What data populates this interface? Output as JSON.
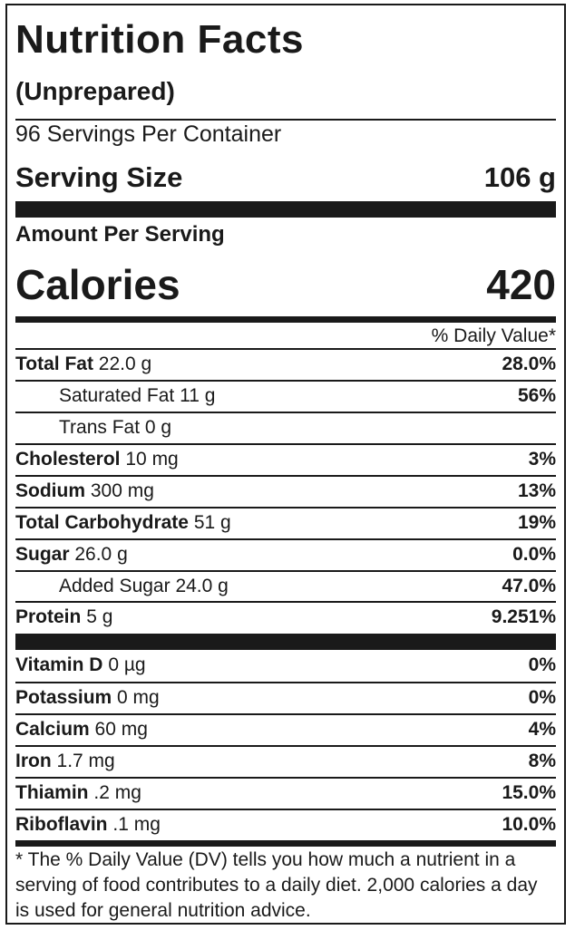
{
  "label": {
    "title": "Nutrition Facts",
    "subtitle": "(Unprepared)",
    "servings_per_container": "96 Servings Per Container",
    "serving_size_label": "Serving Size",
    "serving_size_value": "106 g",
    "amount_per_serving": "Amount Per Serving",
    "calories_label": "Calories",
    "calories_value": "420",
    "daily_value_header": "% Daily Value*",
    "nutrients": [
      {
        "name": "Total Fat",
        "amount": "22.0 g",
        "percent": "28.0%"
      },
      {
        "name": "Saturated Fat",
        "amount": "11 g",
        "percent": "56%"
      },
      {
        "name": "Trans Fat",
        "amount": "0 g",
        "percent": ""
      },
      {
        "name": "Cholesterol",
        "amount": "10 mg",
        "percent": "3%"
      },
      {
        "name": "Sodium",
        "amount": "300 mg",
        "percent": "13%"
      },
      {
        "name": "Total Carbohydrate",
        "amount": "51 g",
        "percent": "19%"
      },
      {
        "name": "Sugar",
        "amount": "26.0 g",
        "percent": "0.0%"
      },
      {
        "name": "Added Sugar",
        "amount": "24.0 g",
        "percent": "47.0%"
      },
      {
        "name": "Protein",
        "amount": "5 g",
        "percent": "9.251%"
      }
    ],
    "vitamins": [
      {
        "name": "Vitamin D",
        "amount": "0 µg",
        "percent": "0%"
      },
      {
        "name": "Potassium",
        "amount": "0 mg",
        "percent": "0%"
      },
      {
        "name": "Calcium",
        "amount": "60 mg",
        "percent": "4%"
      },
      {
        "name": "Iron",
        "amount": "1.7 mg",
        "percent": "8%"
      },
      {
        "name": "Thiamin",
        "amount": ".2 mg",
        "percent": "15.0%"
      },
      {
        "name": "Riboflavin",
        "amount": ".1 mg",
        "percent": "10.0%"
      }
    ],
    "footnote": "* The % Daily Value (DV) tells you how much a nutrient in a serving of food contributes to a daily diet. 2,000 calories a day is used for general nutrition advice."
  }
}
